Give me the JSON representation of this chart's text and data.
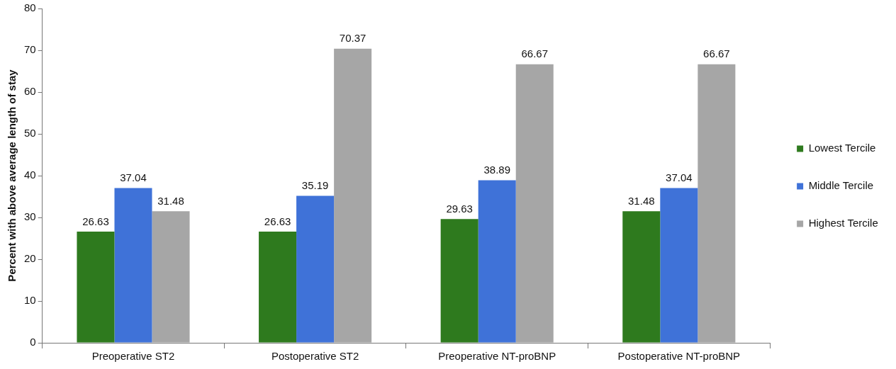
{
  "chart_data": {
    "type": "bar",
    "ylabel": "Percent with above average length of stay",
    "categories": [
      "Preoperative ST2",
      "Postoperative ST2",
      "Preoperative NT-proBNP",
      "Postoperative NT-proBNP"
    ],
    "series": [
      {
        "name": "Lowest Tercile",
        "color": "#2e7a1e",
        "values": [
          26.63,
          26.63,
          29.63,
          31.48
        ]
      },
      {
        "name": "Middle Tercile",
        "color": "#3f72d8",
        "values": [
          37.04,
          35.19,
          38.89,
          37.04
        ]
      },
      {
        "name": "Highest Tercile",
        "color": "#a6a6a6",
        "values": [
          31.48,
          70.37,
          66.67,
          66.67
        ]
      }
    ],
    "ylim": [
      0,
      80
    ],
    "yticks": [
      0,
      10,
      20,
      30,
      40,
      50,
      60,
      70,
      80
    ],
    "grid": false,
    "legend": "right",
    "data_labels": true
  }
}
